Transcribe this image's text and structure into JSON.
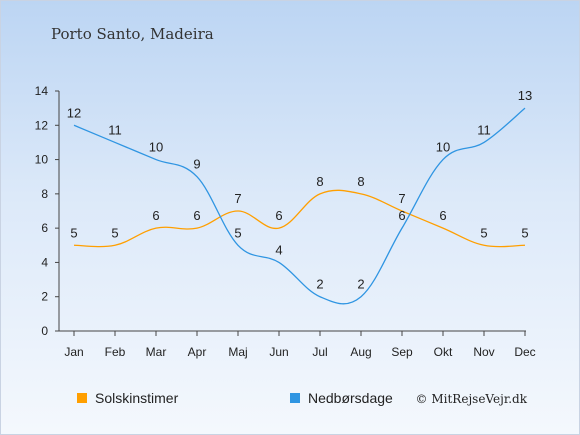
{
  "chart_data": {
    "type": "line",
    "title": "Porto Santo, Madeira",
    "categories": [
      "Jan",
      "Feb",
      "Mar",
      "Apr",
      "Maj",
      "Jun",
      "Jul",
      "Aug",
      "Sep",
      "Okt",
      "Nov",
      "Dec"
    ],
    "series": [
      {
        "name": "Solskinstimer",
        "color": "#ff9f00",
        "values": [
          5,
          5,
          6,
          6,
          7,
          6,
          8,
          8,
          7,
          6,
          5,
          5
        ]
      },
      {
        "name": "Nedbørsdage",
        "color": "#2f95e2",
        "values": [
          12,
          11,
          10,
          9,
          5,
          4,
          2,
          2,
          6,
          10,
          11,
          13
        ]
      }
    ],
    "ylim": [
      0,
      14
    ],
    "yticks": [
      0,
      2,
      4,
      6,
      8,
      10,
      12,
      14
    ],
    "grid": false,
    "legend_position": "bottom-left"
  },
  "credit": "© MitRejseVejr.dk"
}
